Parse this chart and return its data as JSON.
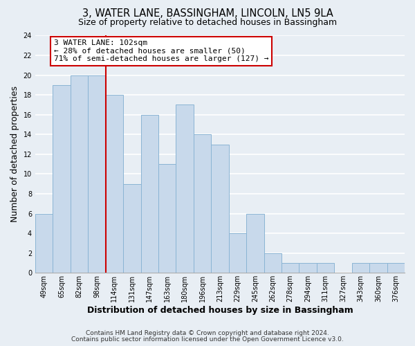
{
  "title": "3, WATER LANE, BASSINGHAM, LINCOLN, LN5 9LA",
  "subtitle": "Size of property relative to detached houses in Bassingham",
  "xlabel": "Distribution of detached houses by size in Bassingham",
  "ylabel": "Number of detached properties",
  "categories": [
    "49sqm",
    "65sqm",
    "82sqm",
    "98sqm",
    "114sqm",
    "131sqm",
    "147sqm",
    "163sqm",
    "180sqm",
    "196sqm",
    "213sqm",
    "229sqm",
    "245sqm",
    "262sqm",
    "278sqm",
    "294sqm",
    "311sqm",
    "327sqm",
    "343sqm",
    "360sqm",
    "376sqm"
  ],
  "values": [
    6,
    19,
    20,
    20,
    18,
    9,
    16,
    11,
    17,
    14,
    13,
    4,
    6,
    2,
    1,
    1,
    1,
    0,
    1,
    1,
    1
  ],
  "bar_color": "#c8d9eb",
  "bar_edge_color": "#8ab4d4",
  "vline_x_index": 3.5,
  "vline_color": "#cc0000",
  "ylim": [
    0,
    24
  ],
  "yticks": [
    0,
    2,
    4,
    6,
    8,
    10,
    12,
    14,
    16,
    18,
    20,
    22,
    24
  ],
  "annotation_title": "3 WATER LANE: 102sqm",
  "annotation_line1": "← 28% of detached houses are smaller (50)",
  "annotation_line2": "71% of semi-detached houses are larger (127) →",
  "annotation_box_color": "#ffffff",
  "annotation_box_edge": "#cc0000",
  "footer_line1": "Contains HM Land Registry data © Crown copyright and database right 2024.",
  "footer_line2": "Contains public sector information licensed under the Open Government Licence v3.0.",
  "background_color": "#e8eef4",
  "grid_color": "#ffffff",
  "title_fontsize": 10.5,
  "subtitle_fontsize": 9,
  "axis_label_fontsize": 9,
  "tick_fontsize": 7,
  "annotation_fontsize": 8,
  "footer_fontsize": 6.5
}
